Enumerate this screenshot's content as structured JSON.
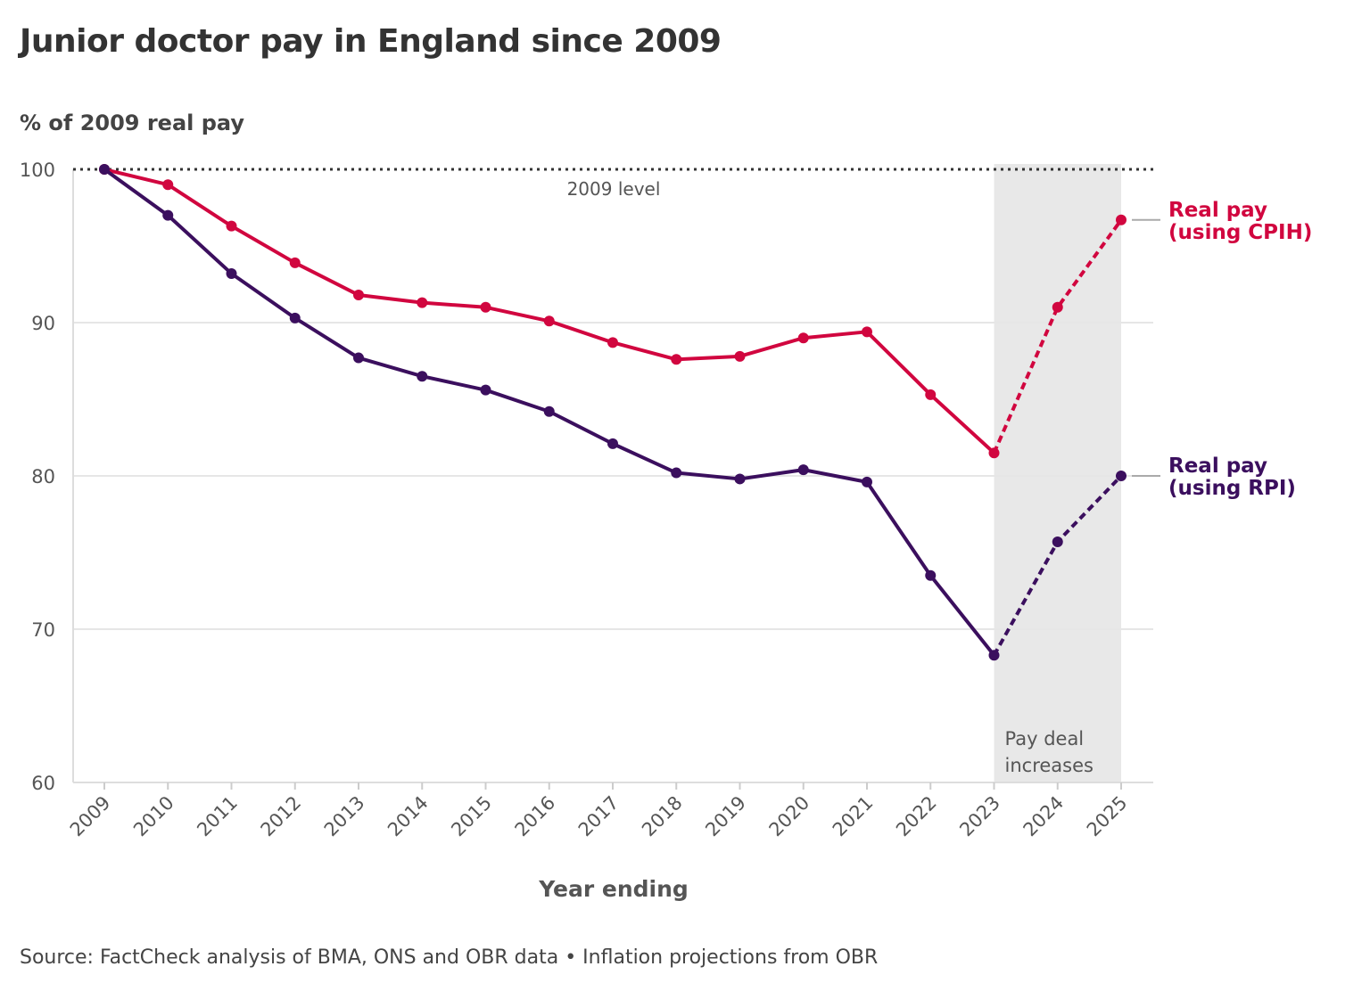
{
  "chart_data": {
    "type": "line",
    "title": "Junior doctor pay in England since 2009",
    "ylabel": "% of 2009 real pay",
    "xlabel": "Year ending",
    "source": "Source: FactCheck analysis of BMA, ONS and OBR data • Inflation projections from OBR",
    "x": [
      2009,
      2010,
      2011,
      2012,
      2013,
      2014,
      2015,
      2016,
      2017,
      2018,
      2019,
      2020,
      2021,
      2022,
      2023,
      2024,
      2025
    ],
    "ylim": [
      60,
      100
    ],
    "yticks": [
      60,
      70,
      80,
      90,
      100
    ],
    "grid": true,
    "reference_line": {
      "value": 100,
      "label": "2009 level"
    },
    "shaded_region": {
      "from": 2023,
      "to": 2025,
      "label_line1": "Pay deal",
      "label_line2": "increases"
    },
    "projected_from": 2023,
    "series": [
      {
        "name": "Real pay (using CPIH)",
        "label_line1": "Real pay",
        "label_line2": "(using CPIH)",
        "color": "#d1063f",
        "values": [
          100,
          99.0,
          96.3,
          93.9,
          91.8,
          91.3,
          91.0,
          90.1,
          88.7,
          87.6,
          87.8,
          89.0,
          89.4,
          85.3,
          81.5,
          91.0,
          96.7
        ]
      },
      {
        "name": "Real pay (using RPI)",
        "label_line1": "Real pay",
        "label_line2": "(using RPI)",
        "color": "#3b0f5e",
        "values": [
          100,
          97.0,
          93.2,
          90.3,
          87.7,
          86.5,
          85.6,
          84.2,
          82.1,
          80.2,
          79.8,
          80.4,
          79.6,
          73.5,
          68.3,
          75.7,
          80.0
        ]
      }
    ]
  }
}
